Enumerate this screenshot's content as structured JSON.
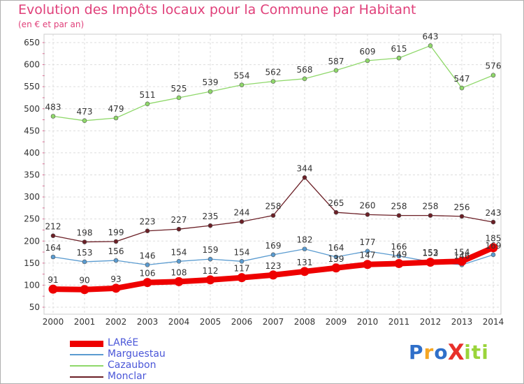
{
  "chart_data": {
    "type": "line",
    "title": "Evolution des Impôts locaux pour la Commune par Habitant",
    "subtitle": "(en € et par an)",
    "xlabel": "",
    "ylabel": "",
    "categories": [
      "2000",
      "2001",
      "2002",
      "2003",
      "2004",
      "2005",
      "2006",
      "2007",
      "2008",
      "2009",
      "2010",
      "2011",
      "2012",
      "2013",
      "2014"
    ],
    "ylim": [
      50,
      650
    ],
    "yticks": [
      50,
      100,
      150,
      200,
      250,
      300,
      350,
      400,
      450,
      500,
      550,
      600,
      650
    ],
    "grid": true,
    "legend_position": "bottom-left",
    "series": [
      {
        "name": "LARéE",
        "color": "#ee0000",
        "values": [
          91,
          90,
          93,
          106,
          108,
          112,
          117,
          123,
          131,
          139,
          147,
          149,
          152,
          154,
          185
        ]
      },
      {
        "name": "Marguestau",
        "color": "#5a9bd0",
        "values": [
          164,
          153,
          156,
          146,
          154,
          159,
          154,
          169,
          182,
          164,
          177,
          166,
          153,
          146,
          169
        ]
      },
      {
        "name": "Cazaubon",
        "color": "#8fd86a",
        "values": [
          483,
          473,
          479,
          511,
          525,
          539,
          554,
          562,
          568,
          587,
          609,
          615,
          643,
          547,
          576
        ]
      },
      {
        "name": "Monclar",
        "color": "#6b1f26",
        "values": [
          212,
          198,
          199,
          223,
          227,
          235,
          244,
          258,
          344,
          265,
          260,
          258,
          258,
          256,
          243
        ]
      }
    ]
  },
  "logo": {
    "text": "ProXiti",
    "letters": [
      "P",
      "r",
      "o",
      "X",
      "i",
      "t",
      "i"
    ],
    "colors": [
      "#2f6fc9",
      "#f5a623",
      "#2f6fc9",
      "#e8302a",
      "#9ad43a",
      "#9ad43a",
      "#9ad43a"
    ]
  }
}
